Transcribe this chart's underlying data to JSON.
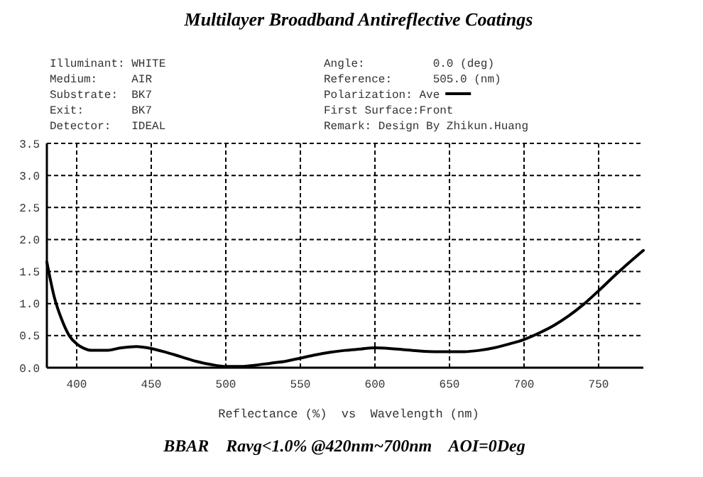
{
  "chart_data": {
    "type": "line",
    "title": "Multilayer Broadband Antireflective Coatings",
    "xlabel": "Reflectance (%)  vs  Wavelength (nm)",
    "legend_title": "Polarization:",
    "legend": "top",
    "grid": true,
    "line_style": "solid",
    "marker": "none",
    "annotations": [
      "Illuminant: WHITE",
      "Medium:     AIR",
      "Substrate:  BK7",
      "Exit:       BK7",
      "Detector:   IDEAL",
      "Angle:          0.0 (deg)",
      "Reference:      505.0 (nm)",
      "First Surface:Front",
      "Remark: Design By Zhikun.Huang",
      "BBAR    Ravg<1.0% @420nm~700nm    AOI=0Deg"
    ],
    "xlim": [
      380,
      780
    ],
    "xticks": [
      400,
      450,
      500,
      550,
      600,
      650,
      700,
      750
    ],
    "ylim": [
      0,
      3.5
    ],
    "yticks": [
      {
        "value": 0,
        "label": "0.0"
      },
      {
        "value": 0.5,
        "label": "0.5"
      },
      {
        "value": 1,
        "label": "1.0"
      },
      {
        "value": 1.5,
        "label": "1.5"
      },
      {
        "value": 2,
        "label": "2.0"
      },
      {
        "value": 2.5,
        "label": "2.5"
      },
      {
        "value": 3,
        "label": "3.0"
      },
      {
        "value": 3.5,
        "label": "3.5"
      }
    ],
    "x": [
      380,
      385,
      390,
      395,
      400,
      405,
      410,
      420,
      430,
      440,
      450,
      460,
      470,
      480,
      490,
      500,
      510,
      520,
      530,
      540,
      550,
      560,
      570,
      580,
      590,
      600,
      610,
      620,
      630,
      640,
      650,
      660,
      670,
      680,
      690,
      700,
      710,
      720,
      730,
      740,
      750,
      760,
      770,
      780
    ],
    "series": [
      {
        "name": "Ave",
        "color": "#000000",
        "values": [
          1.65,
          1.1,
          0.75,
          0.5,
          0.37,
          0.3,
          0.27,
          0.27,
          0.31,
          0.33,
          0.3,
          0.24,
          0.17,
          0.1,
          0.05,
          0.02,
          0.02,
          0.04,
          0.07,
          0.1,
          0.15,
          0.2,
          0.24,
          0.27,
          0.29,
          0.31,
          0.3,
          0.28,
          0.26,
          0.25,
          0.25,
          0.25,
          0.27,
          0.31,
          0.37,
          0.44,
          0.54,
          0.66,
          0.81,
          0.99,
          1.2,
          1.42,
          1.63,
          1.83
        ]
      }
    ]
  }
}
